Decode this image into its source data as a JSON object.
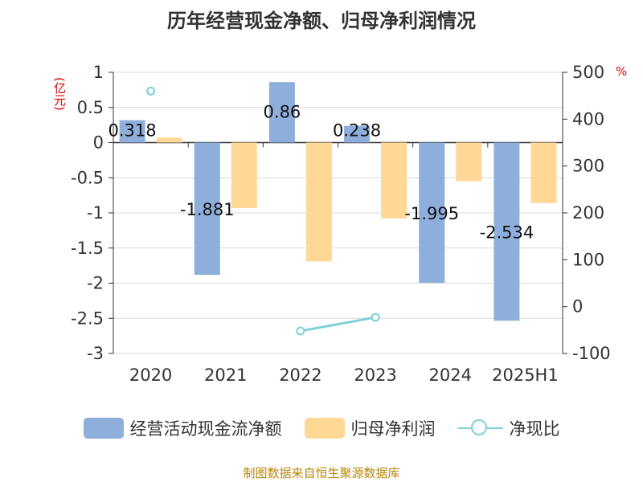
{
  "title": "历年经营现金净额、归母净利润情况",
  "source": "制图数据来自恒生聚源数据库",
  "chart_data": {
    "type": "bar",
    "categories": [
      "2020",
      "2021",
      "2022",
      "2023",
      "2024",
      "2025H1"
    ],
    "y_left": {
      "label": "(亿元)",
      "ylim": [
        -3,
        1
      ],
      "ticks": [
        "1",
        "0.5",
        "0",
        "-0.5",
        "-1",
        "-1.5",
        "-2",
        "-2.5",
        "-3"
      ]
    },
    "y_right": {
      "label": "%",
      "ylim": [
        -100,
        500
      ],
      "ticks": [
        "500",
        "400",
        "300",
        "200",
        "100",
        "0",
        "-100"
      ]
    },
    "grid": true,
    "legend_position": "bottom",
    "series": [
      {
        "name": "经营活动现金流净额",
        "type": "bar",
        "axis": "left",
        "color": "#8eaedb",
        "values": [
          0.318,
          -1.881,
          0.86,
          0.238,
          -1.995,
          -2.534
        ],
        "labels": [
          "0.318",
          "-1.881",
          "0.86",
          "0.238",
          "-1.995",
          "-2.534"
        ]
      },
      {
        "name": "归母净利润",
        "type": "bar",
        "axis": "left",
        "color": "#ffd896",
        "values": [
          0.07,
          -0.93,
          -1.69,
          -1.08,
          -0.55,
          -0.86
        ]
      },
      {
        "name": "净现比",
        "type": "line",
        "axis": "right",
        "color": "#7ecfd8",
        "values": [
          460,
          null,
          -52,
          -23,
          null,
          null
        ]
      }
    ]
  }
}
